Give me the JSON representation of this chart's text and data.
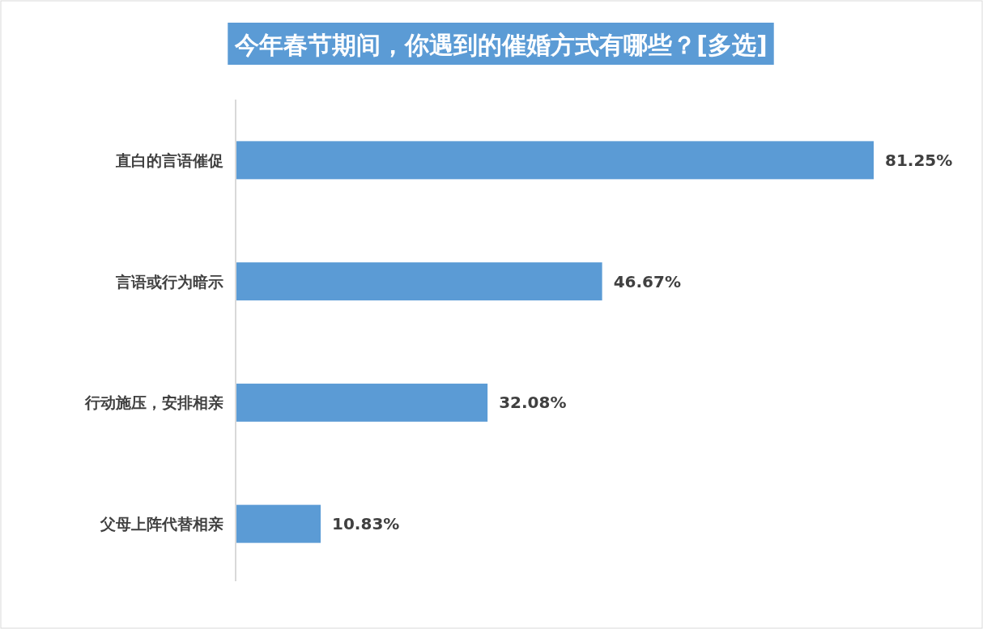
{
  "chart_data": {
    "type": "bar",
    "orientation": "horizontal",
    "title": "今年春节期间，你遇到的催婚方式有哪些？[多选]",
    "categories": [
      "直白的言语催促",
      "言语或行为暗示",
      "行动施压，安排相亲",
      "父母上阵代替相亲"
    ],
    "values": [
      81.25,
      46.67,
      32.08,
      10.83
    ],
    "value_labels": [
      "81.25%",
      "46.67%",
      "32.08%",
      "10.83%"
    ],
    "color": "#5b9bd5"
  }
}
